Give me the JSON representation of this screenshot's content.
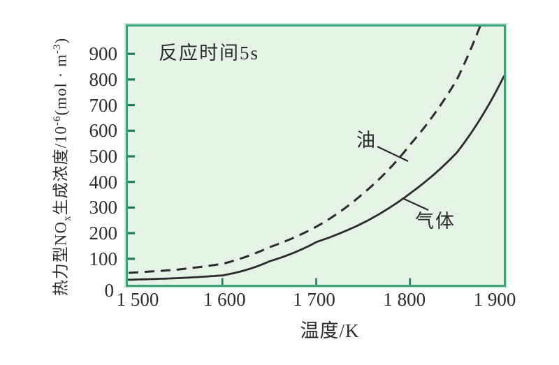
{
  "chart_data": {
    "type": "line",
    "title": "",
    "annotation": "反应时间5s",
    "xlabel": "温度/K",
    "ylabel": "热力型NOx生成浓度/10⁻⁶(mol · m⁻³)",
    "ylabel_segments": [
      {
        "text": "热力型NO"
      },
      {
        "text": "x",
        "script": "sub"
      },
      {
        "text": "生成浓度/10"
      },
      {
        "text": "-6",
        "script": "sup"
      },
      {
        "text": "(mol · m"
      },
      {
        "text": "-3",
        "script": "sup"
      },
      {
        "text": ")"
      }
    ],
    "xlim": [
      1500,
      1900
    ],
    "ylim": [
      0,
      1000
    ],
    "grid": false,
    "legend_position": "inline-annotations",
    "x_ticks": [
      {
        "label": "1 500",
        "value": 1500
      },
      {
        "label": "1 600",
        "value": 1600
      },
      {
        "label": "1 700",
        "value": 1700
      },
      {
        "label": "1 800",
        "value": 1800
      },
      {
        "label": "1 900",
        "value": 1900
      }
    ],
    "y_ticks": [
      {
        "label": "900",
        "value": 900
      },
      {
        "label": "800",
        "value": 800
      },
      {
        "label": "700",
        "value": 700
      },
      {
        "label": "600",
        "value": 600
      },
      {
        "label": "500",
        "value": 500
      },
      {
        "label": "400",
        "value": 400
      },
      {
        "label": "300",
        "value": 300
      },
      {
        "label": "200",
        "value": 200
      },
      {
        "label": "100",
        "value": 100
      },
      {
        "label": "0",
        "value": 0
      }
    ],
    "series": [
      {
        "name": "油",
        "line_style": "dashed",
        "points": [
          [
            1500,
            45
          ],
          [
            1550,
            57
          ],
          [
            1600,
            80
          ],
          [
            1650,
            145
          ],
          [
            1700,
            225
          ],
          [
            1750,
            355
          ],
          [
            1800,
            545
          ],
          [
            1850,
            800
          ],
          [
            1876,
            1020
          ]
        ]
      },
      {
        "name": "气体",
        "line_style": "solid",
        "points": [
          [
            1500,
            18
          ],
          [
            1550,
            24
          ],
          [
            1600,
            35
          ],
          [
            1650,
            90
          ],
          [
            1700,
            165
          ],
          [
            1750,
            240
          ],
          [
            1800,
            355
          ],
          [
            1850,
            515
          ],
          [
            1900,
            812
          ]
        ]
      }
    ],
    "colors": {
      "plot_background": "#e5f2e6",
      "plot_border": "#3aa378",
      "tick": "#1e7b5c",
      "curve": "#2b2b2b",
      "text": "#222222"
    }
  }
}
